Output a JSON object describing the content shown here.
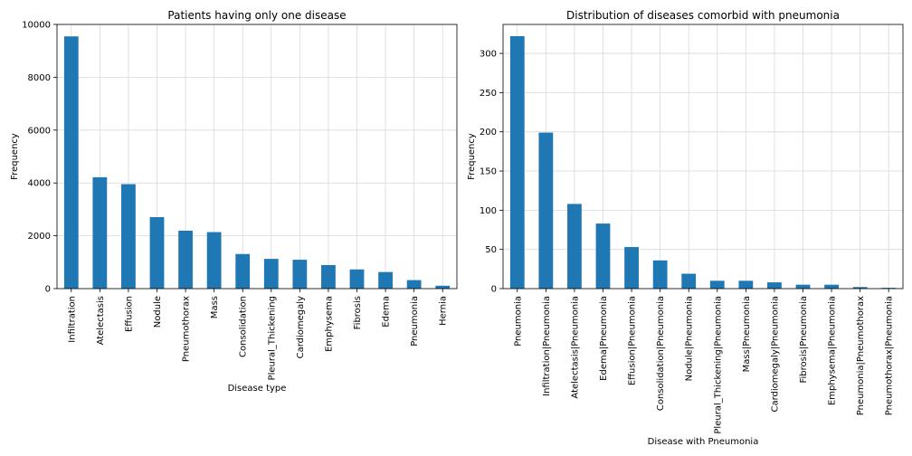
{
  "charts": [
    {
      "type": "bar",
      "title": "Patients having only one disease",
      "xlabel": "Disease type",
      "ylabel": "Frequency",
      "ylim": [
        0,
        10000
      ],
      "yticks": [
        0,
        2000,
        4000,
        6000,
        8000,
        10000
      ],
      "grid": true,
      "bar_color": "#1f77b4",
      "categories": [
        "Infiltration",
        "Atelectasis",
        "Effusion",
        "Nodule",
        "Pneumothorax",
        "Mass",
        "Consolidation",
        "Pleural_Thickening",
        "Cardiomegaly",
        "Emphysema",
        "Fibrosis",
        "Edema",
        "Pneumonia",
        "Hernia"
      ],
      "values": [
        9547,
        4215,
        3955,
        2705,
        2194,
        2139,
        1310,
        1126,
        1093,
        892,
        727,
        628,
        322,
        110
      ]
    },
    {
      "type": "bar",
      "title": "Distribution of diseases comorbid with pneumonia",
      "xlabel": "Disease with Pneumonia",
      "ylabel": "Frequency",
      "ylim": [
        0,
        337
      ],
      "yticks": [
        0,
        50,
        100,
        150,
        200,
        250,
        300
      ],
      "grid": true,
      "bar_color": "#1f77b4",
      "categories": [
        "Pneumonia",
        "Infiltration|Pneumonia",
        "Atelectasis|Pneumonia",
        "Edema|Pneumonia",
        "Effusion|Pneumonia",
        "Consolidation|Pneumonia",
        "Nodule|Pneumonia",
        "Pleural_Thickening|Pneumonia",
        "Mass|Pneumonia",
        "Cardiomegaly|Pneumonia",
        "Fibrosis|Pneumonia",
        "Emphysema|Pneumonia",
        "Pneumonia|Pneumothorax",
        "Pneumothorax|Pneumonia"
      ],
      "values": [
        322,
        199,
        108,
        83,
        53,
        36,
        19,
        10,
        10,
        8,
        5,
        5,
        2,
        1
      ]
    }
  ]
}
